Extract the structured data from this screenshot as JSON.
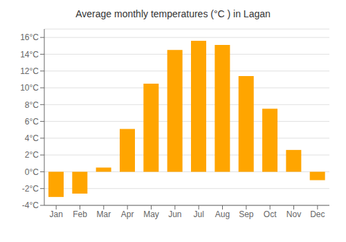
{
  "chart_data": {
    "type": "bar",
    "title": "Average monthly temperatures (°C ) in Lagan",
    "categories": [
      "Jan",
      "Feb",
      "Mar",
      "Apr",
      "May",
      "Jun",
      "Jul",
      "Aug",
      "Sep",
      "Oct",
      "Nov",
      "Dec"
    ],
    "values": [
      -3.0,
      -2.6,
      0.5,
      5.1,
      10.5,
      14.5,
      15.6,
      15.1,
      11.4,
      7.5,
      2.6,
      -1.0
    ],
    "color": "#FFA500",
    "ylim": [
      -4,
      17
    ],
    "yticks": [
      {
        "value": -4,
        "label": "-4°C"
      },
      {
        "value": -2,
        "label": "-2°C"
      },
      {
        "value": 0,
        "label": "0°C"
      },
      {
        "value": 2,
        "label": "2°C"
      },
      {
        "value": 4,
        "label": "4°C"
      },
      {
        "value": 6,
        "label": "6°C"
      },
      {
        "value": 8,
        "label": "8°C"
      },
      {
        "value": 10,
        "label": "10°C"
      },
      {
        "value": 12,
        "label": "12°C"
      },
      {
        "value": 14,
        "label": "14°C"
      },
      {
        "value": 16,
        "label": "16°C"
      }
    ],
    "grid": true
  }
}
